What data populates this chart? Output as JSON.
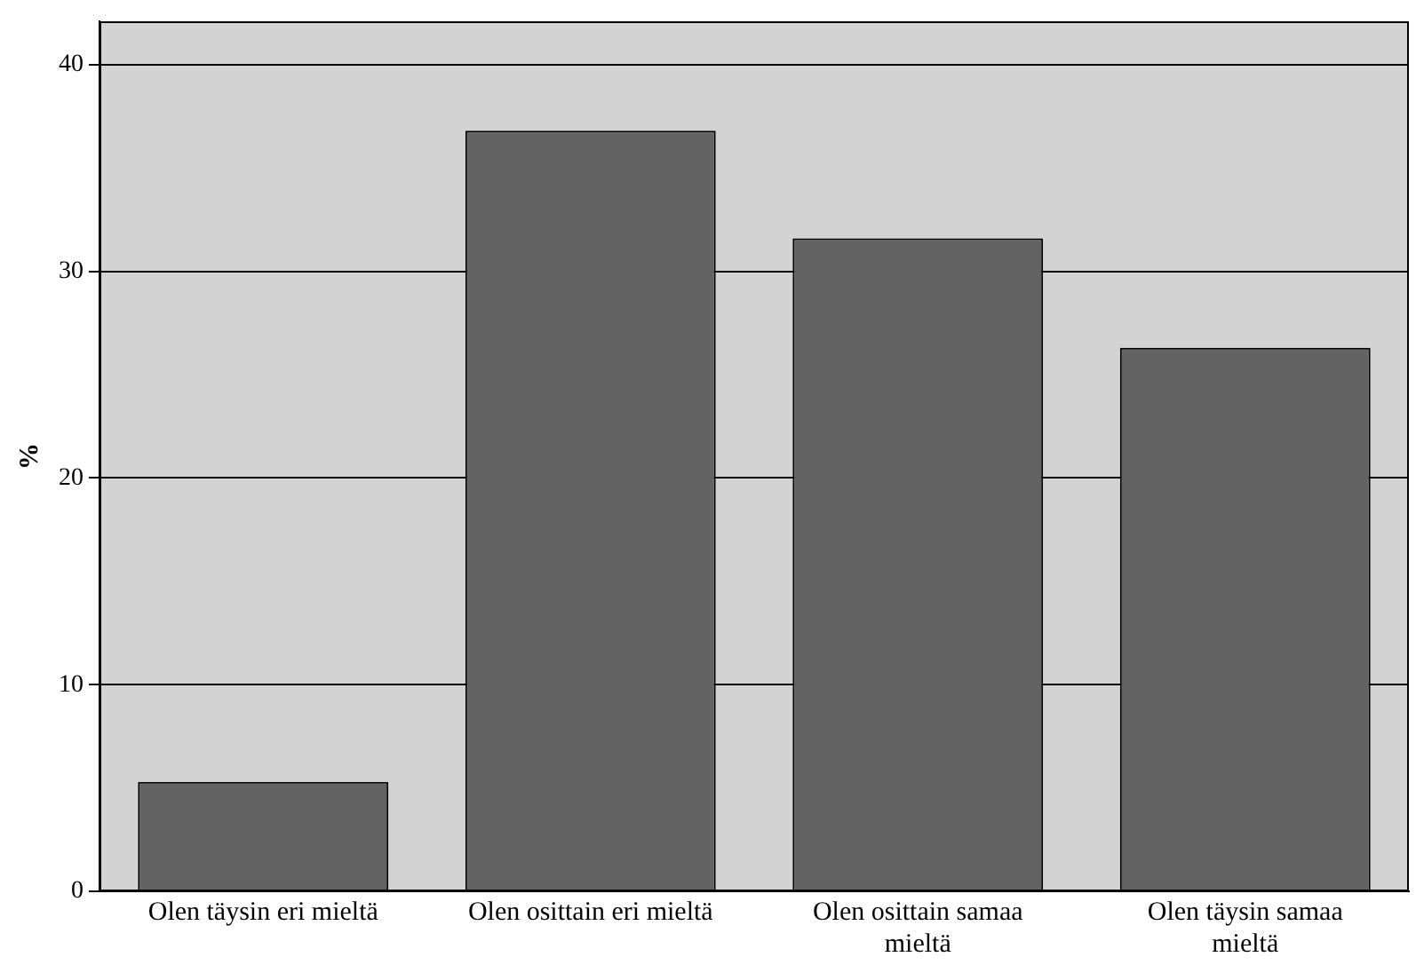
{
  "chart_data": {
    "type": "bar",
    "ylabel": "%",
    "categories": [
      "Olen täysin eri mieltä",
      "Olen osittain eri mieltä",
      "Olen osittain samaa mieltä",
      "Olen täysin samaa mieltä"
    ],
    "values": [
      5.3,
      36.8,
      31.6,
      26.3
    ],
    "color": "#636363",
    "ylim": [
      0,
      42.1
    ],
    "yticks": [
      0,
      10,
      20,
      30,
      40
    ],
    "grid": "y",
    "legend": false
  }
}
